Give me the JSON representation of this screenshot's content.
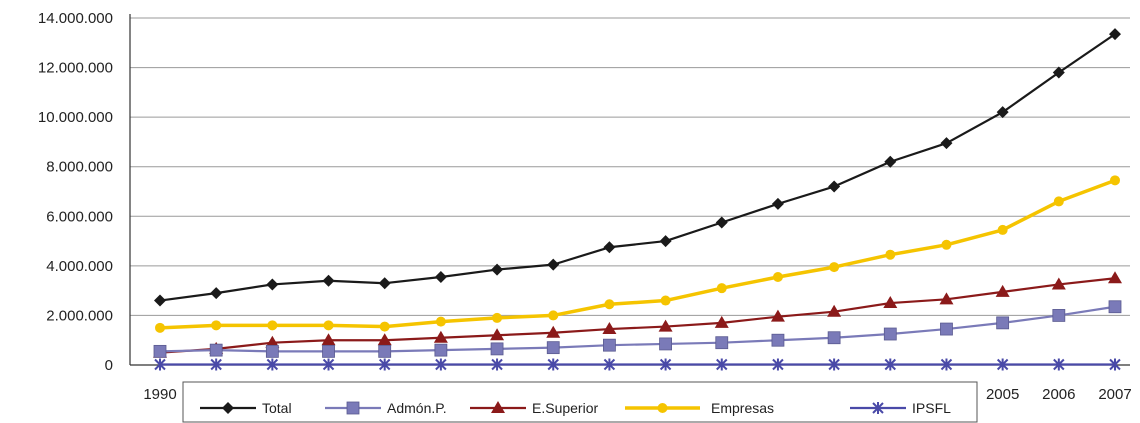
{
  "chart_data": {
    "type": "line",
    "x": [
      1990,
      1991,
      1992,
      1993,
      1994,
      1995,
      1996,
      1997,
      1998,
      1999,
      2000,
      2001,
      2002,
      2003,
      2004,
      2005,
      2006,
      2007
    ],
    "x_tick_labels_shown": [
      "1990",
      "2005",
      "2006",
      "2007"
    ],
    "y_tick_labels": [
      "0",
      "2.000.000",
      "4.000.000",
      "6.000.000",
      "8.000.000",
      "10.000.000",
      "12.000.000",
      "14.000.000"
    ],
    "ylim": [
      0,
      14000000
    ],
    "grid": "horizontal",
    "legend_position": "bottom",
    "series": [
      {
        "name": "Total",
        "color": "#1a1a1a",
        "marker": "diamond",
        "values": [
          2600000,
          2900000,
          3250000,
          3400000,
          3300000,
          3550000,
          3850000,
          4050000,
          4750000,
          5000000,
          5750000,
          6500000,
          7200000,
          8200000,
          8950000,
          10200000,
          11800000,
          13350000
        ]
      },
      {
        "name": "Admón.P.",
        "color": "#7a7ab8",
        "marker": "square",
        "values": [
          550000,
          600000,
          550000,
          550000,
          550000,
          600000,
          650000,
          700000,
          800000,
          850000,
          900000,
          1000000,
          1100000,
          1250000,
          1450000,
          1700000,
          2000000,
          2350000
        ]
      },
      {
        "name": "E.Superior",
        "color": "#8b1a1a",
        "marker": "triangle",
        "values": [
          500000,
          650000,
          900000,
          1000000,
          1000000,
          1100000,
          1200000,
          1300000,
          1450000,
          1550000,
          1700000,
          1950000,
          2150000,
          2500000,
          2650000,
          2950000,
          3250000,
          3500000
        ]
      },
      {
        "name": "Empresas",
        "color": "#f5c400",
        "marker": "circle",
        "values": [
          1500000,
          1600000,
          1600000,
          1600000,
          1550000,
          1750000,
          1900000,
          2000000,
          2450000,
          2600000,
          3100000,
          3550000,
          3950000,
          4450000,
          4850000,
          5450000,
          6600000,
          7450000
        ]
      },
      {
        "name": "IPSFL",
        "color": "#4a4aa8",
        "marker": "star",
        "values": [
          20000,
          20000,
          20000,
          20000,
          20000,
          20000,
          20000,
          20000,
          20000,
          20000,
          20000,
          20000,
          20000,
          20000,
          20000,
          20000,
          20000,
          20000
        ]
      }
    ]
  }
}
